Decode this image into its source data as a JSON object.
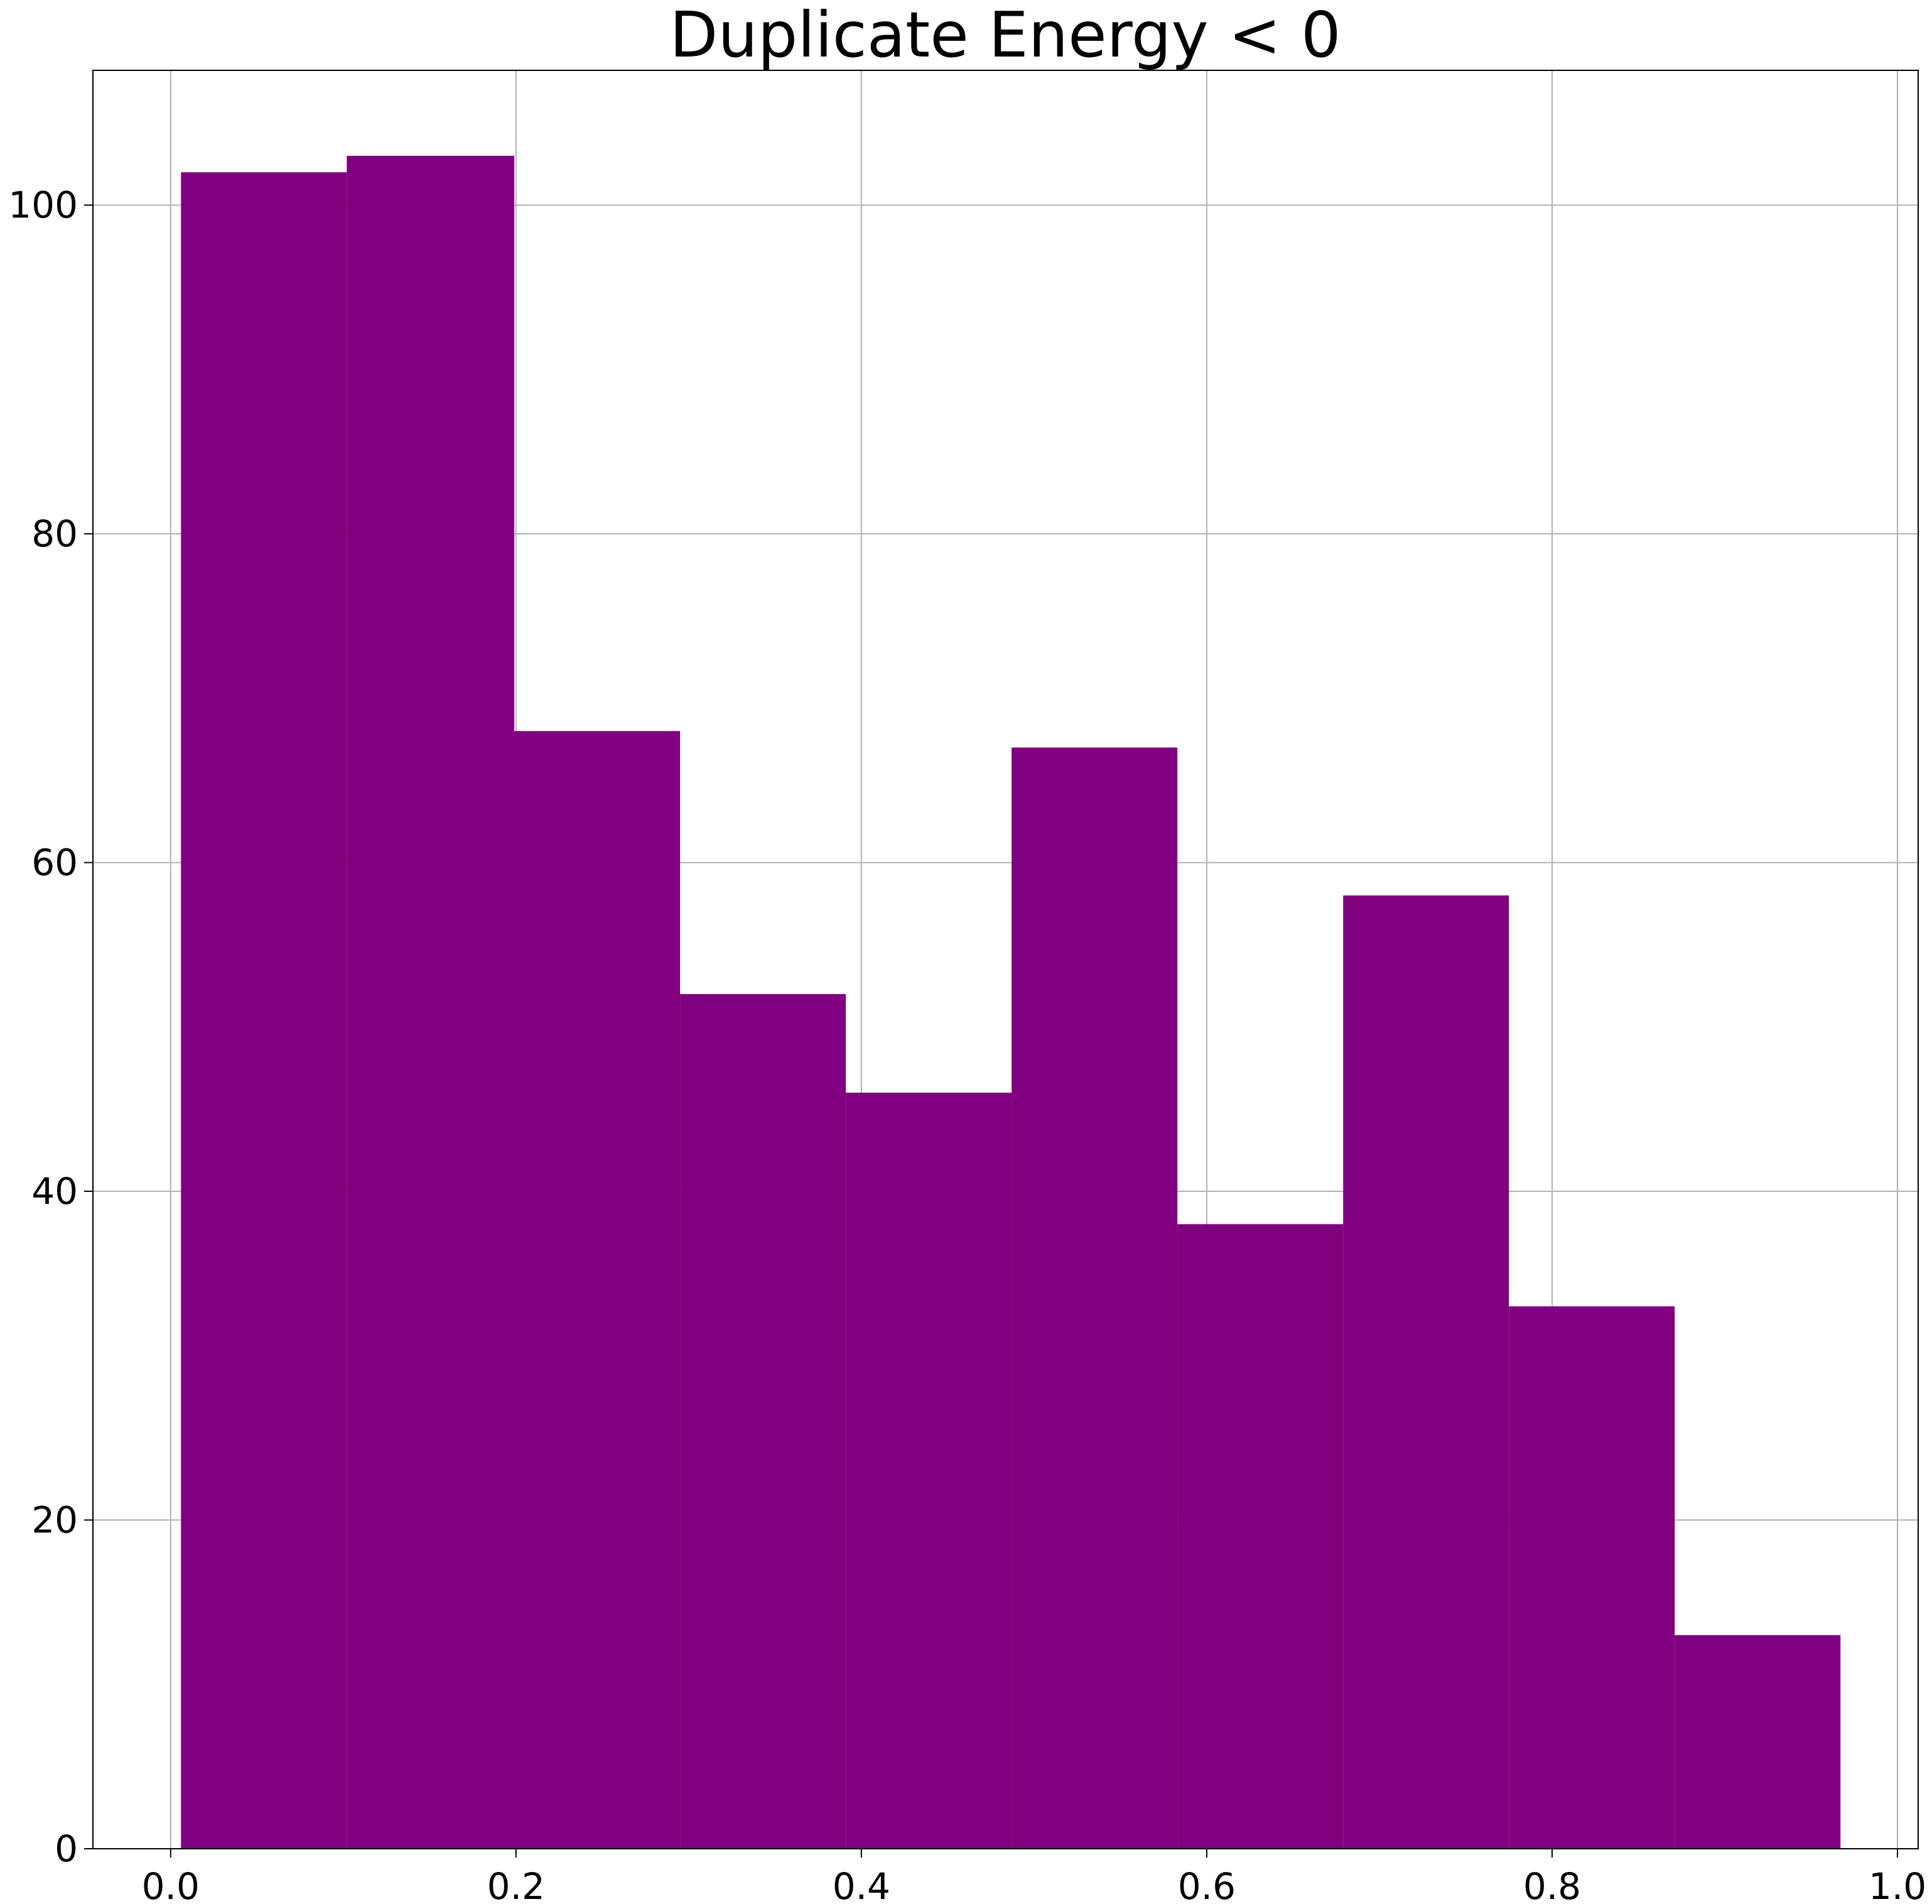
{
  "chart_data": {
    "type": "bar",
    "subtype": "histogram",
    "title": "Duplicate Energy < 0",
    "xlabel": "",
    "ylabel": "",
    "color": "#800080",
    "grid": true,
    "xlim": [
      -0.045,
      1.012
    ],
    "ylim": [
      0,
      108.2
    ],
    "xticks": [
      {
        "value": 0.0,
        "label": "0.0"
      },
      {
        "value": 0.2,
        "label": "0.2"
      },
      {
        "value": 0.4,
        "label": "0.4"
      },
      {
        "value": 0.6,
        "label": "0.6"
      },
      {
        "value": 0.8,
        "label": "0.8"
      },
      {
        "value": 1.0,
        "label": "1.0"
      }
    ],
    "yticks": [
      {
        "value": 0,
        "label": "0"
      },
      {
        "value": 20,
        "label": "20"
      },
      {
        "value": 40,
        "label": "40"
      },
      {
        "value": 60,
        "label": "60"
      },
      {
        "value": 80,
        "label": "80"
      },
      {
        "value": 100,
        "label": "100"
      }
    ],
    "bin_edges": [
      0.006,
      0.102,
      0.199,
      0.295,
      0.391,
      0.487,
      0.583,
      0.679,
      0.775,
      0.871,
      0.967
    ],
    "values": [
      102,
      103,
      68,
      52,
      46,
      67,
      38,
      58,
      33,
      13
    ]
  }
}
